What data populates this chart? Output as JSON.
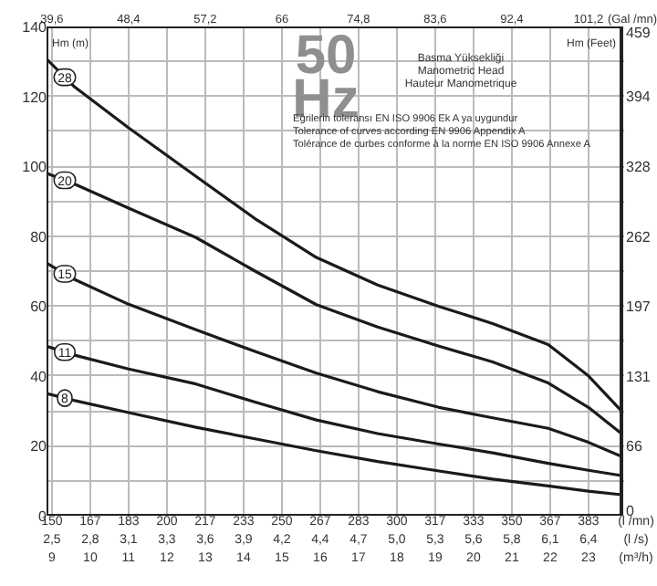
{
  "chart_data": {
    "type": "line",
    "xlabel": "(m³/h)",
    "x2label": "(Gal /mn)",
    "ylabel": "Hm (m)",
    "y2label": "Hm (Feet)",
    "xlim": [
      8.86,
      23.86
    ],
    "xticks": [
      9,
      10,
      11,
      12,
      13,
      14,
      15,
      16,
      17,
      18,
      19,
      20,
      21,
      22,
      23
    ],
    "x2lim": [
      38.98,
      104.98
    ],
    "x2ticks": [
      {
        "value": 39.6,
        "label": "39,6"
      },
      {
        "value": 48.4,
        "label": "48,4"
      },
      {
        "value": 57.2,
        "label": "57,2"
      },
      66,
      {
        "value": 74.8,
        "label": "74,8"
      },
      {
        "value": 83.6,
        "label": "83,6"
      },
      {
        "value": 92.4,
        "label": "92,4"
      },
      {
        "value": 101.2,
        "label": "101,2"
      }
    ],
    "ylim": [
      0,
      140
    ],
    "yticks": [
      0,
      {
        "value": 10,
        "label": null
      },
      20,
      {
        "value": 30,
        "label": null
      },
      40,
      {
        "value": 50,
        "label": null
      },
      60,
      {
        "value": 70,
        "label": null
      },
      80,
      {
        "value": 90,
        "label": null
      },
      100,
      {
        "value": 110,
        "label": null
      },
      120,
      {
        "value": 130,
        "label": null
      },
      140
    ],
    "y2lim": [
      0,
      459
    ],
    "y2ticks": [
      0,
      66,
      131,
      197,
      262,
      328,
      394,
      459
    ],
    "grid": true,
    "marker": "none",
    "line_style": "solid",
    "series": [
      {
        "name": "28",
        "color": "#1a1a1a",
        "x": [
          8.86,
          9.57,
          11,
          12.76,
          14.3,
          15.9,
          17.5,
          19.1,
          20.5,
          21.95,
          23,
          23.86
        ],
        "values": [
          130.7,
          122.9,
          111,
          97.1,
          85,
          73.9,
          66,
          59.9,
          55,
          49,
          40,
          30
        ]
      },
      {
        "name": "20",
        "color": "#1a1a1a",
        "x": [
          8.86,
          9.57,
          11,
          12.76,
          14.3,
          15.9,
          17.5,
          19.1,
          20.5,
          21.95,
          23,
          23.86
        ],
        "values": [
          98,
          95,
          88,
          79.6,
          70,
          60.4,
          54,
          48.5,
          44,
          38,
          31,
          23.5
        ]
      },
      {
        "name": "15",
        "color": "#1a1a1a",
        "x": [
          8.86,
          9.57,
          11,
          12.76,
          14.3,
          15.9,
          17.5,
          19.1,
          20.5,
          21.95,
          23,
          23.86
        ],
        "values": [
          72.3,
          67.7,
          60.5,
          53.2,
          47,
          40.8,
          35.5,
          31,
          28,
          25,
          21,
          17
        ]
      },
      {
        "name": "11",
        "color": "#1a1a1a",
        "x": [
          8.86,
          9.57,
          11,
          12.76,
          14.3,
          15.9,
          17.5,
          19.1,
          20.5,
          21.95,
          23,
          23.86
        ],
        "values": [
          48.5,
          46,
          42,
          37.7,
          32.5,
          27.4,
          23.5,
          20.5,
          18,
          15,
          13,
          11.5
        ]
      },
      {
        "name": "8",
        "color": "#1a1a1a",
        "x": [
          8.86,
          9.57,
          11,
          12.76,
          14.3,
          15.9,
          17.5,
          19.1,
          20.5,
          21.95,
          23,
          23.86
        ],
        "values": [
          35,
          33,
          29.5,
          25.3,
          22,
          18.6,
          15.5,
          12.8,
          10.5,
          8.5,
          7,
          6
        ]
      }
    ],
    "annotations": [
      "50",
      "Hz",
      "Basma Yüksekliği",
      "Manometric Head",
      "Hauteur Manometrique",
      "Eğrilerin toleransı EN ISO 9906 Ek A ya uygundur",
      "Tolerance of curves according EN 9906 Appendix A",
      "Tolérance de curbes conforme à la norme EN ISO 9906 Annexe A",
      "150",
      "167",
      "183",
      "200",
      "217",
      "233",
      "250",
      "267",
      "283",
      "300",
      "317",
      "333",
      "350",
      "367",
      "383",
      "(l /mn)",
      "2,5",
      "2,8",
      "3,1",
      "3,3",
      "3,6",
      "3,9",
      "4,2",
      "4,4",
      "4,7",
      "5,0",
      "5,3",
      "5,6",
      "5,8",
      "6,1",
      "6,4",
      "(l /s)"
    ]
  }
}
